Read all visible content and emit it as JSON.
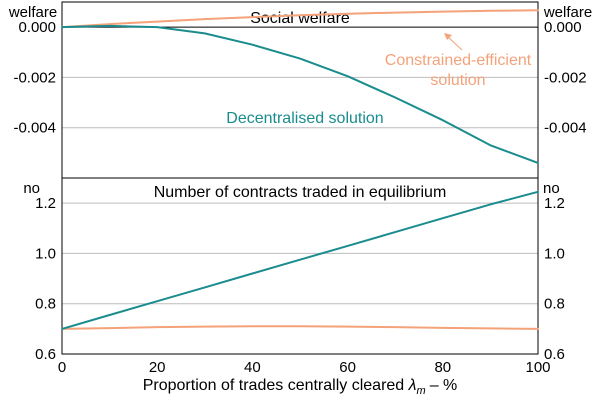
{
  "colors": {
    "constrained": "#F4A27A",
    "decentralised": "#1A8C8E",
    "grid": "#BDBDBD"
  },
  "chart_data": {
    "type": "line",
    "xlabel": "Proportion of trades centrally cleared",
    "xlabel_symbol": "λ",
    "xlabel_symbol_sub": "m",
    "xlabel_unit": "– %",
    "xlim": [
      0,
      100
    ],
    "xticks": [
      "0",
      "20",
      "40",
      "60",
      "80",
      "100"
    ],
    "panels": [
      {
        "title": "Social welfare",
        "unit_left": "welfare",
        "unit_right": "welfare",
        "ylim": [
          -0.006,
          0.001
        ],
        "yticks": [
          0.0,
          -0.002,
          -0.004
        ],
        "ytick_labels": [
          "0.000",
          "-0.002",
          "-0.004"
        ],
        "x": [
          0,
          10,
          20,
          30,
          40,
          50,
          60,
          70,
          80,
          90,
          100
        ],
        "series": [
          {
            "name": "Constrained-efficient",
            "name_line2": "solution",
            "values": [
              0.0,
              0.00012,
              0.00022,
              0.00032,
              0.0004,
              0.00047,
              0.00053,
              0.00058,
              0.00062,
              0.00065,
              0.00067
            ]
          },
          {
            "name": "Decentralised solution",
            "values": [
              0.0,
              5e-05,
              0.0,
              -0.00025,
              -0.0007,
              -0.00125,
              -0.00195,
              -0.0028,
              -0.0037,
              -0.0047,
              -0.0054
            ]
          }
        ]
      },
      {
        "title": "Number of contracts traded in equilibrium",
        "unit_left": "no",
        "unit_right": "no",
        "ylim": [
          0.6,
          1.3
        ],
        "yticks": [
          0.6,
          0.8,
          1.0,
          1.2
        ],
        "ytick_labels": [
          "0.6",
          "0.8",
          "1.0",
          "1.2"
        ],
        "x": [
          0,
          10,
          20,
          30,
          40,
          50,
          60,
          70,
          80,
          90,
          100
        ],
        "series": [
          {
            "name": "Constrained-efficient",
            "values": [
              0.7,
              0.703,
              0.707,
              0.709,
              0.71,
              0.71,
              0.709,
              0.707,
              0.704,
              0.702,
              0.7
            ]
          },
          {
            "name": "Decentralised",
            "values": [
              0.7,
              0.755,
              0.81,
              0.865,
              0.92,
              0.975,
              1.03,
              1.085,
              1.14,
              1.195,
              1.245
            ]
          }
        ]
      }
    ]
  }
}
